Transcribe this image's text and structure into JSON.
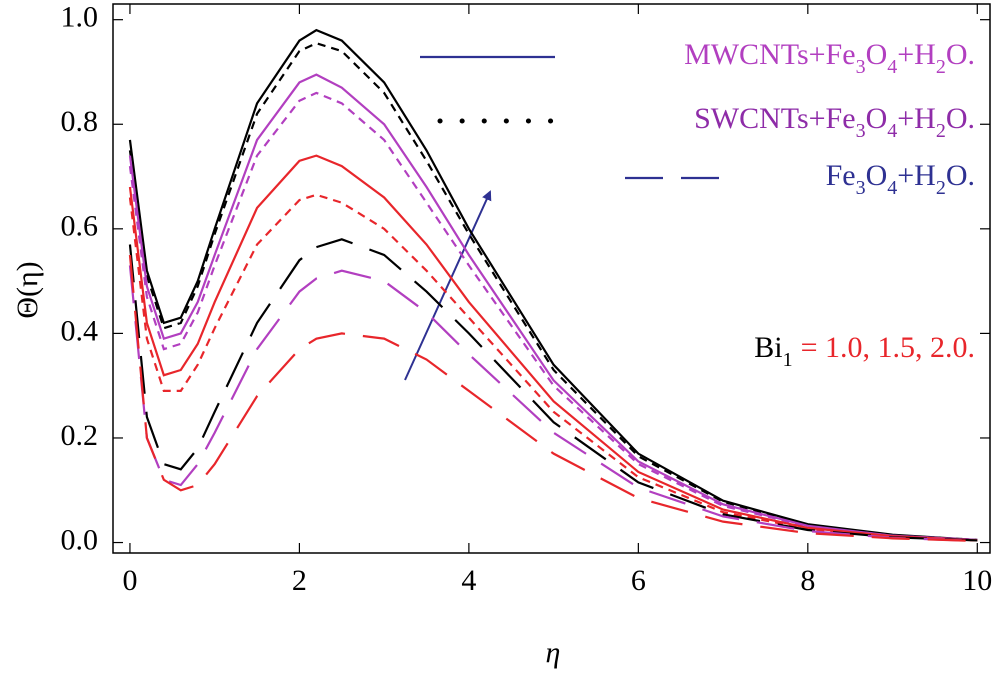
{
  "chart_data": {
    "type": "line",
    "x_label": "η",
    "y_label": "Θ(η)",
    "x": [
      0,
      0.2,
      0.4,
      0.6,
      0.8,
      1,
      1.5,
      2,
      2.2,
      2.5,
      3,
      3.5,
      4,
      5,
      6,
      7,
      8,
      9,
      10
    ],
    "series": [
      {
        "color": "#000000",
        "dash": "solid",
        "values": [
          0.77,
          0.52,
          0.42,
          0.43,
          0.5,
          0.6,
          0.84,
          0.96,
          0.98,
          0.96,
          0.88,
          0.75,
          0.6,
          0.34,
          0.17,
          0.08,
          0.035,
          0.015,
          0.005
        ]
      },
      {
        "color": "#000000",
        "dash": "short",
        "values": [
          0.75,
          0.51,
          0.41,
          0.42,
          0.49,
          0.59,
          0.82,
          0.94,
          0.955,
          0.94,
          0.86,
          0.73,
          0.59,
          0.33,
          0.165,
          0.078,
          0.034,
          0.014,
          0.005
        ]
      },
      {
        "color": "#b23fc0",
        "dash": "solid",
        "values": [
          0.74,
          0.49,
          0.39,
          0.4,
          0.46,
          0.55,
          0.77,
          0.88,
          0.895,
          0.87,
          0.8,
          0.68,
          0.55,
          0.31,
          0.155,
          0.073,
          0.032,
          0.013,
          0.005
        ]
      },
      {
        "color": "#b23fc0",
        "dash": "short",
        "values": [
          0.72,
          0.47,
          0.37,
          0.38,
          0.44,
          0.53,
          0.74,
          0.845,
          0.86,
          0.84,
          0.77,
          0.65,
          0.53,
          0.3,
          0.15,
          0.07,
          0.031,
          0.013,
          0.005
        ]
      },
      {
        "color": "#e8262b",
        "dash": "solid",
        "values": [
          0.68,
          0.42,
          0.32,
          0.33,
          0.38,
          0.46,
          0.64,
          0.73,
          0.74,
          0.72,
          0.66,
          0.57,
          0.46,
          0.27,
          0.135,
          0.063,
          0.028,
          0.012,
          0.004
        ]
      },
      {
        "color": "#e8262b",
        "dash": "short",
        "values": [
          0.66,
          0.39,
          0.29,
          0.29,
          0.34,
          0.41,
          0.57,
          0.655,
          0.665,
          0.65,
          0.6,
          0.52,
          0.43,
          0.25,
          0.125,
          0.058,
          0.026,
          0.011,
          0.004
        ]
      },
      {
        "color": "#000000",
        "dash": "long",
        "values": [
          0.57,
          0.24,
          0.15,
          0.14,
          0.18,
          0.25,
          0.42,
          0.54,
          0.565,
          0.58,
          0.55,
          0.48,
          0.4,
          0.23,
          0.115,
          0.054,
          0.024,
          0.01,
          0.004
        ]
      },
      {
        "color": "#b23fc0",
        "dash": "long",
        "values": [
          0.53,
          0.2,
          0.12,
          0.11,
          0.15,
          0.21,
          0.37,
          0.48,
          0.505,
          0.52,
          0.5,
          0.44,
          0.36,
          0.21,
          0.105,
          0.05,
          0.022,
          0.009,
          0.003
        ]
      },
      {
        "color": "#e8262b",
        "dash": "long",
        "values": [
          0.55,
          0.2,
          0.12,
          0.1,
          0.11,
          0.15,
          0.28,
          0.37,
          0.39,
          0.4,
          0.39,
          0.35,
          0.29,
          0.17,
          0.085,
          0.04,
          0.018,
          0.008,
          0.003
        ]
      }
    ],
    "legend": [
      {
        "name": "MWCNTs+Fe3O4+H2O.",
        "color": "#2e3192",
        "text_color": "#b23fc0",
        "style": "solid"
      },
      {
        "name": "SWCNTs+Fe3O4+H2O.",
        "color": "#000000",
        "text_color": "#8e2ca8",
        "style": "dotted"
      },
      {
        "name": "Fe3O4+H2O.",
        "color": "#2e3192",
        "text_color": "#2e3192",
        "style": "long"
      }
    ],
    "annotation": [
      "Bi1",
      "= 1.0, 1.5, 2.0."
    ],
    "xlim": [
      -0.2,
      10.15
    ],
    "ylim": [
      -0.02,
      1.03
    ],
    "xticks": [
      0,
      2,
      4,
      6,
      8,
      10
    ],
    "yticks": [
      {
        "value": 0,
        "label": "0.0"
      },
      {
        "value": 0.2,
        "label": "0.2"
      },
      {
        "value": 0.4,
        "label": "0.4"
      },
      {
        "value": 0.6,
        "label": "0.6"
      },
      {
        "value": 0.8,
        "label": "0.8"
      },
      {
        "value": 1,
        "label": "1.0"
      }
    ]
  }
}
